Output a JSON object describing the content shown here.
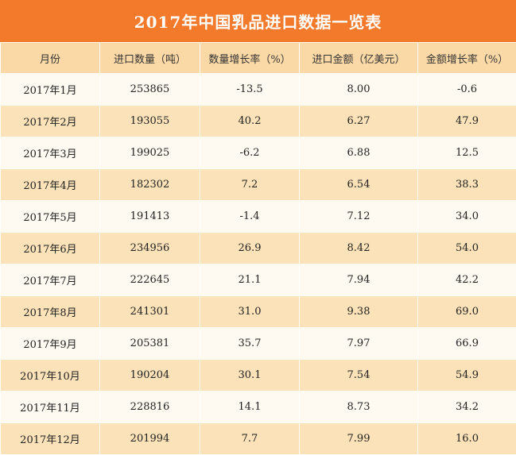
{
  "title": "2017年中国乳品进口数据一览表",
  "columns": [
    "月份",
    "进口数量（吨）",
    "数量增长率（%）",
    "进口金额（亿美元）",
    "金额增长率（%）"
  ],
  "rows": [
    [
      "2017年1月",
      "253865",
      "-13.5",
      "8.00",
      "-0.6"
    ],
    [
      "2017年2月",
      "193055",
      "40.2",
      "6.27",
      "47.9"
    ],
    [
      "2017年3月",
      "199025",
      "-6.2",
      "6.88",
      "12.5"
    ],
    [
      "2017年4月",
      "182302",
      "7.2",
      "6.54",
      "38.3"
    ],
    [
      "2017年5月",
      "191413",
      "-1.4",
      "7.12",
      "34.0"
    ],
    [
      "2017年6月",
      "234956",
      "26.9",
      "8.42",
      "54.0"
    ],
    [
      "2017年7月",
      "222645",
      "21.1",
      "7.94",
      "42.2"
    ],
    [
      "2017年8月",
      "241301",
      "31.0",
      "9.38",
      "69.0"
    ],
    [
      "2017年9月",
      "205381",
      "35.7",
      "7.97",
      "66.9"
    ],
    [
      "2017年10月",
      "190204",
      "30.1",
      "7.54",
      "54.9"
    ],
    [
      "2017年11月",
      "228816",
      "14.1",
      "8.73",
      "34.2"
    ],
    [
      "2017年12月",
      "201994",
      "7.7",
      "7.99",
      "16.0"
    ]
  ],
  "colors": {
    "title_bg": "#f47a2b",
    "header_bg": "#fbd9a6",
    "row_light": "#fffaf1",
    "row_dark": "#fbe2b8"
  }
}
